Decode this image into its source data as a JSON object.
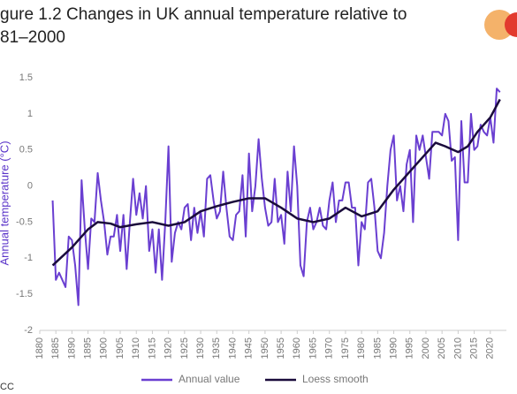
{
  "chart_data": {
    "type": "line",
    "title": "gure 1.2 Changes in UK annual temperature relative to",
    "subtitle": "81–2000",
    "y_label": "Annual temperature (°C)",
    "watermark": "CC",
    "xlim": [
      1880,
      2025
    ],
    "xticks": [
      1880,
      1885,
      1890,
      1895,
      1900,
      1905,
      1910,
      1915,
      1920,
      1925,
      1930,
      1935,
      1940,
      1945,
      1950,
      1955,
      1960,
      1965,
      1970,
      1975,
      1980,
      1985,
      1990,
      1995,
      2000,
      2005,
      2010,
      2015,
      2020
    ],
    "ylim": [
      -2,
      1.5
    ],
    "yticks": [
      1.5,
      1,
      0.5,
      0,
      -0.5,
      -1,
      -1.5,
      -2
    ],
    "grid": false,
    "legend": "bottom",
    "series": [
      {
        "name": "Annual value",
        "color": "#6a3fd1",
        "x": [
          1884,
          1885,
          1886,
          1887,
          1888,
          1889,
          1890,
          1891,
          1892,
          1893,
          1894,
          1895,
          1896,
          1897,
          1898,
          1899,
          1900,
          1901,
          1902,
          1903,
          1904,
          1905,
          1906,
          1907,
          1908,
          1909,
          1910,
          1911,
          1912,
          1913,
          1914,
          1915,
          1916,
          1917,
          1918,
          1919,
          1920,
          1921,
          1922,
          1923,
          1924,
          1925,
          1926,
          1927,
          1928,
          1929,
          1930,
          1931,
          1932,
          1933,
          1934,
          1935,
          1936,
          1937,
          1938,
          1939,
          1940,
          1941,
          1942,
          1943,
          1944,
          1945,
          1946,
          1947,
          1948,
          1949,
          1950,
          1951,
          1952,
          1953,
          1954,
          1955,
          1956,
          1957,
          1958,
          1959,
          1960,
          1961,
          1962,
          1963,
          1964,
          1965,
          1966,
          1967,
          1968,
          1969,
          1970,
          1971,
          1972,
          1973,
          1974,
          1975,
          1976,
          1977,
          1978,
          1979,
          1980,
          1981,
          1982,
          1983,
          1984,
          1985,
          1986,
          1987,
          1988,
          1989,
          1990,
          1991,
          1992,
          1993,
          1994,
          1995,
          1996,
          1997,
          1998,
          1999,
          2000,
          2001,
          2002,
          2003,
          2004,
          2005,
          2006,
          2007,
          2008,
          2009,
          2010,
          2011,
          2012,
          2013,
          2014,
          2015,
          2016,
          2017,
          2018,
          2019,
          2020,
          2021,
          2022,
          2023
        ],
        "values": [
          -0.2,
          -1.3,
          -1.2,
          -1.3,
          -1.4,
          -0.7,
          -0.75,
          -1.1,
          -1.65,
          0.08,
          -0.6,
          -1.15,
          -0.45,
          -0.5,
          0.18,
          -0.2,
          -0.5,
          -0.95,
          -0.7,
          -0.7,
          -0.4,
          -0.9,
          -0.4,
          -1.15,
          -0.5,
          0.1,
          -0.4,
          -0.1,
          -0.45,
          0.0,
          -0.9,
          -0.6,
          -1.2,
          -0.6,
          -1.3,
          -0.5,
          0.55,
          -1.05,
          -0.65,
          -0.5,
          -0.6,
          -0.3,
          -0.25,
          -0.75,
          -0.3,
          -0.65,
          -0.35,
          -0.7,
          0.1,
          0.15,
          -0.2,
          -0.45,
          -0.35,
          0.2,
          -0.3,
          -0.7,
          -0.75,
          -0.4,
          -0.35,
          0.15,
          -0.7,
          0.45,
          -0.35,
          0.0,
          0.65,
          0.1,
          -0.3,
          -0.55,
          -0.5,
          0.1,
          -0.5,
          -0.4,
          -0.8,
          0.2,
          -0.35,
          0.55,
          0.0,
          -1.1,
          -1.25,
          -0.5,
          -0.3,
          -0.6,
          -0.5,
          -0.3,
          -0.55,
          -0.6,
          -0.2,
          0.05,
          -0.5,
          -0.2,
          -0.2,
          0.05,
          0.05,
          -0.3,
          -0.3,
          -1.1,
          -0.5,
          -0.6,
          0.05,
          0.1,
          -0.3,
          -0.9,
          -1.0,
          -0.65,
          0.0,
          0.5,
          0.7,
          -0.2,
          0.0,
          -0.35,
          0.3,
          0.5,
          -0.5,
          0.7,
          0.5,
          0.7,
          0.4,
          0.1,
          0.75,
          0.75,
          0.75,
          0.7,
          1.0,
          0.9,
          0.35,
          0.4,
          -0.75,
          0.9,
          0.05,
          0.05,
          1.0,
          0.5,
          0.55,
          0.85,
          0.75,
          0.7,
          0.95,
          0.6,
          1.35,
          1.3
        ]
      },
      {
        "name": "Loess smooth",
        "color": "#1a0b3b",
        "x": [
          1884,
          1890,
          1895,
          1898,
          1902,
          1905,
          1910,
          1915,
          1920,
          1925,
          1930,
          1935,
          1940,
          1945,
          1950,
          1955,
          1960,
          1965,
          1970,
          1975,
          1980,
          1985,
          1990,
          1995,
          2000,
          2003,
          2006,
          2010,
          2013,
          2016,
          2020,
          2023
        ],
        "values": [
          -1.1,
          -0.85,
          -0.6,
          -0.5,
          -0.52,
          -0.57,
          -0.53,
          -0.5,
          -0.55,
          -0.5,
          -0.35,
          -0.28,
          -0.22,
          -0.17,
          -0.17,
          -0.3,
          -0.45,
          -0.5,
          -0.45,
          -0.3,
          -0.42,
          -0.35,
          -0.05,
          0.2,
          0.45,
          0.6,
          0.55,
          0.47,
          0.55,
          0.75,
          0.95,
          1.2
        ]
      }
    ]
  }
}
